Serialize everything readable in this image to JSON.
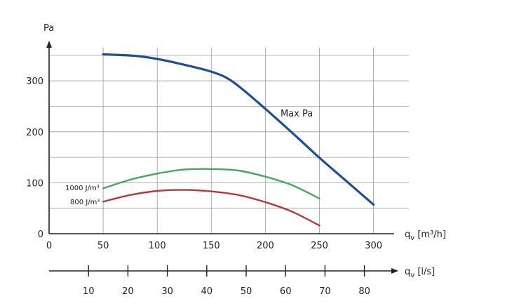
{
  "chart_data": [
    {
      "type": "line",
      "x_unit": "q_v [m³/h]",
      "y_unit": "Pa",
      "x_ticks": [
        0,
        50,
        100,
        150,
        200,
        250,
        300
      ],
      "y_ticks": [
        0,
        100,
        200,
        300
      ],
      "xlim": [
        0,
        325
      ],
      "ylim": [
        0,
        360
      ],
      "grid": true,
      "series": [
        {
          "name": "Max Pa",
          "color": "#1f4f8f",
          "x": [
            50,
            80,
            100,
            120,
            150,
            170,
            200,
            230,
            250,
            275,
            300
          ],
          "y": [
            352,
            349,
            343,
            334,
            318,
            298,
            245,
            188,
            149,
            103,
            57
          ]
        },
        {
          "name": "1000 J/m³",
          "color": "#4aa564",
          "x": [
            50,
            75,
            100,
            125,
            150,
            175,
            200,
            225,
            250
          ],
          "y": [
            89,
            106,
            118,
            126,
            127,
            124,
            112,
            95,
            69
          ]
        },
        {
          "name": "800 J/m³",
          "color": "#b23a3f",
          "x": [
            50,
            75,
            100,
            125,
            150,
            175,
            200,
            225,
            250
          ],
          "y": [
            63,
            76,
            84,
            86,
            83,
            76,
            62,
            43,
            16
          ]
        }
      ]
    },
    {
      "type": "axis",
      "x_unit": "q_v [l/s]",
      "x_ticks": [
        10,
        20,
        30,
        40,
        50,
        60,
        70,
        80
      ],
      "xlim": [
        0,
        87
      ]
    }
  ],
  "labels": {
    "y_unit": "Pa",
    "x_unit_main": "q",
    "x_unit_main_sub": "v",
    "x_unit_main_rest": " [m³/h]",
    "x_unit_ls": "q",
    "x_unit_ls_sub": "v",
    "x_unit_ls_rest": " [l/s]",
    "curve_max": "Max Pa",
    "curve_1000": "1000 J/m³",
    "curve_800": "800 J/m³"
  }
}
